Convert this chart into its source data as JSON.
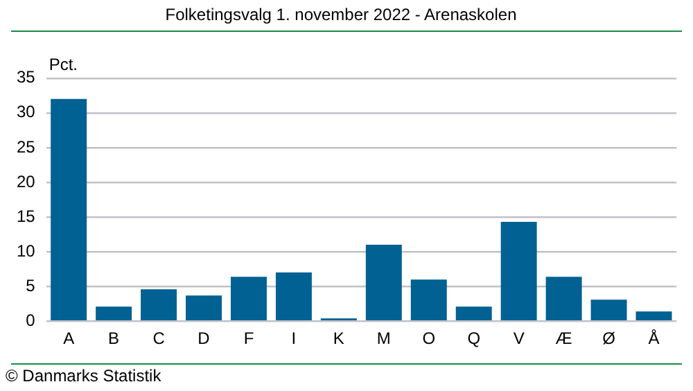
{
  "chart_data": {
    "type": "bar",
    "title": "Folketingsvalg 1. november 2022 - Arenaskolen",
    "ylabel": "Pct.",
    "categories": [
      "A",
      "B",
      "C",
      "D",
      "F",
      "I",
      "K",
      "M",
      "O",
      "Q",
      "V",
      "Æ",
      "Ø",
      "Å"
    ],
    "values": [
      32.0,
      2.1,
      4.6,
      3.7,
      6.4,
      7.0,
      0.4,
      11.0,
      6.0,
      2.1,
      14.3,
      6.4,
      3.1,
      1.4
    ],
    "color": "#006192",
    "ylim": [
      0,
      35
    ],
    "yticks": [
      0,
      5,
      10,
      15,
      20,
      25,
      30,
      35
    ],
    "grid": "y",
    "legend": false,
    "annotations": [
      "© Danmarks Statistik"
    ]
  }
}
